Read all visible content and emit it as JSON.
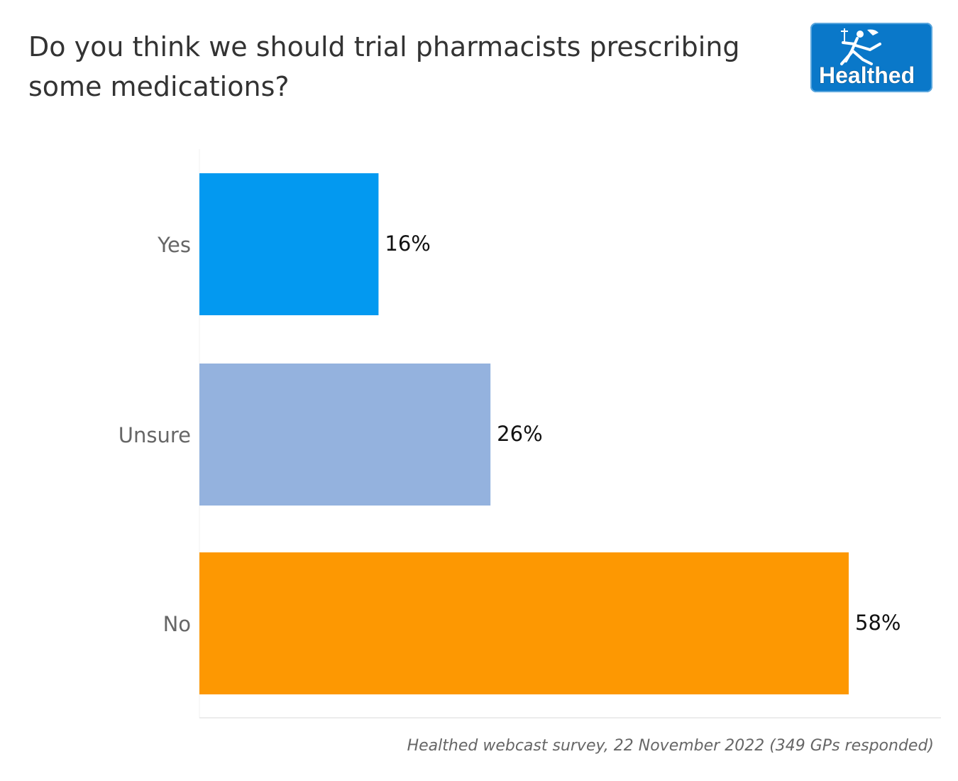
{
  "title": "Do you think we should trial pharmacists prescribing some medications?",
  "logo": {
    "text": "Healthed",
    "icon": "hermes-figure-icon",
    "background": "#0a78c9"
  },
  "source": "Healthed webcast survey, 22 November 2022 (349 GPs responded)",
  "chart_data": {
    "type": "bar",
    "orientation": "horizontal",
    "categories": [
      "Yes",
      "Unsure",
      "No"
    ],
    "values": [
      16,
      26,
      58
    ],
    "value_labels": [
      "16%",
      "26%",
      "58%"
    ],
    "colors": [
      "#0399f0",
      "#94b2de",
      "#fd9802"
    ],
    "xlim": [
      0,
      66
    ],
    "grid": false
  }
}
